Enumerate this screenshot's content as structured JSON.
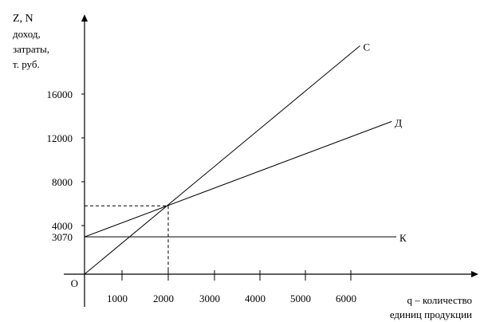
{
  "chart_data": {
    "type": "line",
    "ylabel_lines": [
      "Z, N",
      "доход,",
      "затраты,",
      "т. руб."
    ],
    "xlabel_lines": [
      "q – количество",
      "единиц продукции"
    ],
    "origin_label": "O",
    "x_ticks": [
      1000,
      2000,
      3000,
      4000,
      5000,
      6000
    ],
    "y_ticks": [
      3070,
      4000,
      8000,
      12000,
      16000
    ],
    "series": [
      {
        "name": "С",
        "points": [
          [
            0,
            0
          ],
          [
            6200,
            20400
          ]
        ]
      },
      {
        "name": "Д",
        "points": [
          [
            0,
            3070
          ],
          [
            6900,
            13500
          ]
        ]
      },
      {
        "name": "К",
        "points": [
          [
            0,
            3070
          ],
          [
            7000,
            3070
          ]
        ]
      }
    ],
    "break_even": {
      "x": 2000,
      "y": 5800,
      "style": "dashed"
    },
    "grid": false,
    "colors": {
      "line": "#000000"
    }
  }
}
